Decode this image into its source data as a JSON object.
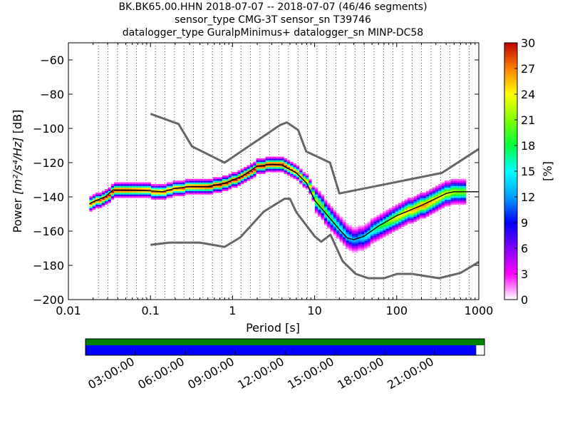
{
  "title": {
    "line1": "BK.BK65.00.HHN   2018-07-07 -- 2018-07-07  (46/46 segments)",
    "line2": "sensor_type CMG-3T sensor_sn T39746",
    "line3": "datalogger_type GuralpMinimus+ datalogger_sn MINP-DC58"
  },
  "colors": {
    "noise_model": "#666666",
    "mean_curve": "#000000",
    "timeline_green": "#008000",
    "timeline_blue": "#0000ff",
    "colormap": [
      "#ffffff",
      "#ff00ff",
      "#8000ff",
      "#0000ff",
      "#00a0ff",
      "#00ffff",
      "#00ff40",
      "#80ff00",
      "#ffff00",
      "#ff8000",
      "#ff0000",
      "#c00000"
    ]
  },
  "chart_data": [
    {
      "type": "heatmap",
      "title": "BK.BK65.00.HHN   2018-07-07 -- 2018-07-07  (46/46 segments)",
      "xlabel": "Period [s]",
      "ylabel_prefix": "Power ",
      "ylabel_units": "[m²/s⁴/Hz]",
      "ylabel_suffix": " [dB]",
      "x_scale": "log",
      "xlim": [
        0.01,
        1000
      ],
      "ylim": [
        -200,
        -50
      ],
      "x_ticks": [
        {
          "value": 0.01,
          "label": "0.01"
        },
        {
          "value": 0.1,
          "label": "0.1"
        },
        {
          "value": 1,
          "label": "1"
        },
        {
          "value": 10,
          "label": "10"
        },
        {
          "value": 100,
          "label": "100"
        },
        {
          "value": 1000,
          "label": "1000"
        }
      ],
      "y_ticks": [
        -200,
        -180,
        -160,
        -140,
        -120,
        -100,
        -80,
        -60
      ],
      "grid": "dotted vertical lines at period bins",
      "colorbar": {
        "label": "[%]",
        "range": [
          0,
          30
        ],
        "ticks": [
          0,
          3,
          6,
          9,
          12,
          15,
          18,
          21,
          24,
          27,
          30
        ]
      },
      "noise_model_high": {
        "period": [
          0.1,
          0.22,
          0.32,
          0.8,
          3.8,
          4.6,
          6.3,
          7.9,
          15.4,
          20,
          354.8,
          1000
        ],
        "power": [
          -91.5,
          -97.4,
          -110.5,
          -120,
          -98,
          -96.5,
          -101,
          -113.5,
          -120,
          -138,
          -126,
          -112
        ]
      },
      "noise_model_low": {
        "period": [
          0.1,
          0.17,
          0.4,
          0.8,
          1.24,
          2.4,
          4.3,
          5,
          6,
          10,
          12,
          15.6,
          21.9,
          31.6,
          45,
          70,
          101,
          154,
          328,
          600,
          1000
        ],
        "power": [
          -168,
          -166.7,
          -166.7,
          -169.2,
          -163.7,
          -148.6,
          -141.1,
          -141.1,
          -149,
          -163,
          -166.2,
          -162.1,
          -177.5,
          -185,
          -187.5,
          -187.5,
          -185,
          -185,
          -187.5,
          -184.4,
          -178
        ]
      },
      "mean_curve": {
        "period": [
          0.018,
          0.022,
          0.028,
          0.035,
          0.05,
          0.1,
          0.14,
          0.2,
          0.3,
          0.5,
          0.8,
          1.3,
          2,
          3,
          4,
          5,
          6,
          8,
          10,
          15,
          20,
          25,
          30,
          40,
          60,
          100,
          200,
          400,
          500,
          1000
        ],
        "power": [
          -144,
          -142,
          -140,
          -136,
          -136,
          -136.5,
          -137,
          -135,
          -134,
          -134,
          -132,
          -128,
          -122,
          -121,
          -121.5,
          -124,
          -126,
          -132,
          -142,
          -152,
          -159,
          -164,
          -165,
          -163,
          -157,
          -151,
          -145,
          -138,
          -137,
          -137
        ]
      },
      "pdf_column_peaks": [
        {
          "period": 0.02,
          "mode_power": -143,
          "max_pct": 28
        },
        {
          "period": 0.03,
          "mode_power": -139,
          "max_pct": 30
        },
        {
          "period": 0.05,
          "mode_power": -136,
          "max_pct": 30
        },
        {
          "period": 0.1,
          "mode_power": -136,
          "max_pct": 28
        },
        {
          "period": 0.2,
          "mode_power": -134,
          "max_pct": 28
        },
        {
          "period": 0.5,
          "mode_power": -134,
          "max_pct": 30
        },
        {
          "period": 1,
          "mode_power": -132,
          "max_pct": 30
        },
        {
          "period": 2,
          "mode_power": -122,
          "max_pct": 30
        },
        {
          "period": 4,
          "mode_power": -121,
          "max_pct": 30
        },
        {
          "period": 8,
          "mode_power": -131,
          "max_pct": 24
        },
        {
          "period": 15,
          "mode_power": -151,
          "max_pct": 18
        },
        {
          "period": 30,
          "mode_power": -164,
          "max_pct": 12
        },
        {
          "period": 60,
          "mode_power": -157,
          "max_pct": 18
        },
        {
          "period": 100,
          "mode_power": -151,
          "max_pct": 24
        },
        {
          "period": 200,
          "mode_power": -145,
          "max_pct": 27
        },
        {
          "period": 600,
          "mode_power": -137,
          "max_pct": 21
        }
      ]
    },
    {
      "type": "timeline",
      "tick_labels": [
        "03:00:00",
        "06:00:00",
        "09:00:00",
        "12:00:00",
        "15:00:00",
        "18:00:00",
        "21:00:00"
      ],
      "tick_hours": [
        3,
        6,
        9,
        12,
        15,
        18,
        21
      ],
      "range_hours": [
        0,
        24
      ],
      "green_coverage": [
        0,
        24
      ],
      "blue_coverage": [
        0,
        23.5
      ]
    }
  ]
}
